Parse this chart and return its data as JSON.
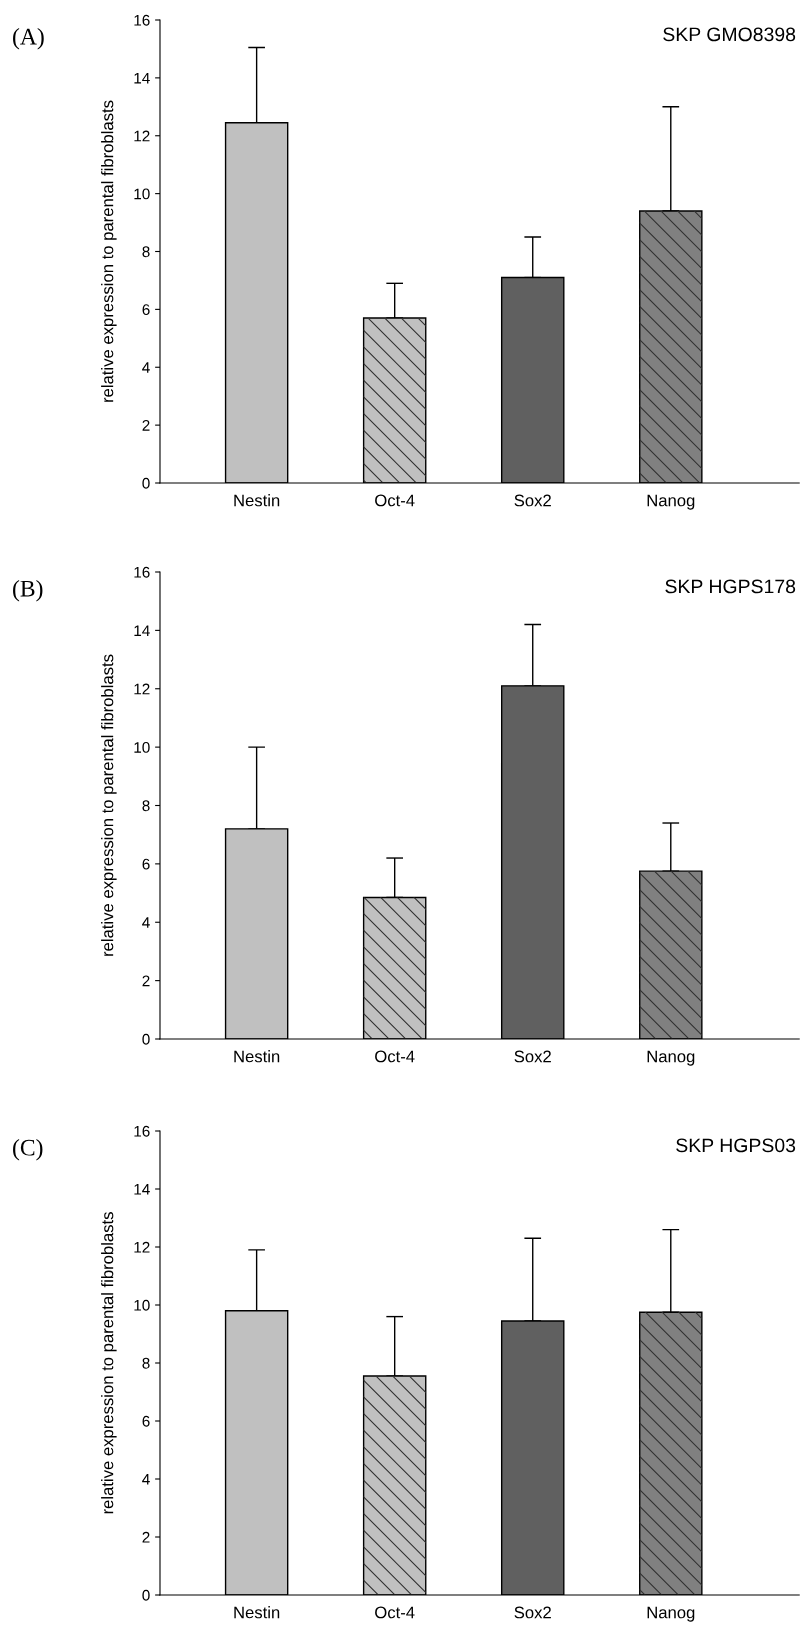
{
  "chart_data": [
    {
      "type": "bar",
      "title": "SKP GMO8398",
      "ylabel": "relative expression to parental fibroblasts",
      "annotations": [
        "(A)"
      ],
      "categories": [
        "Nestin",
        "Oct-4",
        "Sox2",
        "Nanog"
      ],
      "values": [
        12.45,
        5.7,
        7.1,
        9.4
      ],
      "errors": [
        [
          12.45,
          15.05
        ],
        [
          5.7,
          6.9
        ],
        [
          7.1,
          8.5
        ],
        [
          9.4,
          13.0
        ]
      ],
      "colors": [
        "#c0c0c0",
        "#c0c0c0",
        "#606060",
        "#808080"
      ],
      "ylim": [
        0,
        16
      ],
      "yticks": [
        0,
        2,
        4,
        6,
        8,
        10,
        12,
        14,
        16
      ],
      "grid": false
    },
    {
      "type": "bar",
      "title": "SKP HGPS178",
      "ylabel": "relative expression to parental fibroblasts",
      "annotations": [
        "(B)"
      ],
      "categories": [
        "Nestin",
        "Oct-4",
        "Sox2",
        "Nanog"
      ],
      "values": [
        7.2,
        4.85,
        12.1,
        5.75
      ],
      "errors": [
        [
          7.2,
          10.0
        ],
        [
          4.85,
          6.2
        ],
        [
          12.1,
          14.2
        ],
        [
          5.75,
          7.4
        ]
      ],
      "colors": [
        "#c0c0c0",
        "#c0c0c0",
        "#606060",
        "#808080"
      ],
      "ylim": [
        0,
        16
      ],
      "yticks": [
        0,
        2,
        4,
        6,
        8,
        10,
        12,
        14,
        16
      ],
      "grid": false
    },
    {
      "type": "bar",
      "title": "SKP HGPS03",
      "ylabel": "relative expression to parental fibroblasts",
      "annotations": [
        "(C)"
      ],
      "categories": [
        "Nestin",
        "Oct-4",
        "Sox2",
        "Nanog"
      ],
      "values": [
        9.8,
        7.55,
        9.45,
        9.75
      ],
      "errors": [
        [
          9.8,
          11.9
        ],
        [
          7.55,
          9.6
        ],
        [
          9.45,
          12.3
        ],
        [
          9.75,
          12.6
        ]
      ],
      "colors": [
        "#c0c0c0",
        "#c0c0c0",
        "#606060",
        "#808080"
      ],
      "ylim": [
        0,
        16
      ],
      "yticks": [
        0,
        2,
        4,
        6,
        8,
        10,
        12,
        14,
        16
      ],
      "grid": false
    }
  ]
}
